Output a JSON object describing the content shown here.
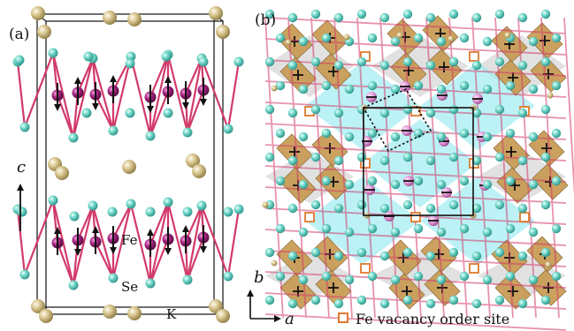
{
  "panel_a": {
    "label": "(a)",
    "axis_label": "c",
    "atom_labels": {
      "fe": "Fe",
      "se": "Se",
      "k": "K"
    }
  },
  "panel_b": {
    "label": "(b)",
    "axis_b": "b",
    "axis_a": "a",
    "legend_text": "Fe vacancy order site"
  },
  "colors": {
    "fe": "#9a1a7a",
    "se": "#6fd6c8",
    "k": "#d8c58d",
    "bond": "#d23a6a",
    "octahedron": "#c89a52",
    "octahedron_dark": "#8a6a35",
    "cyan_plane": "#8feaf0",
    "gray_plane": "#d7d7d7",
    "vacancy": "#e07a2e"
  }
}
